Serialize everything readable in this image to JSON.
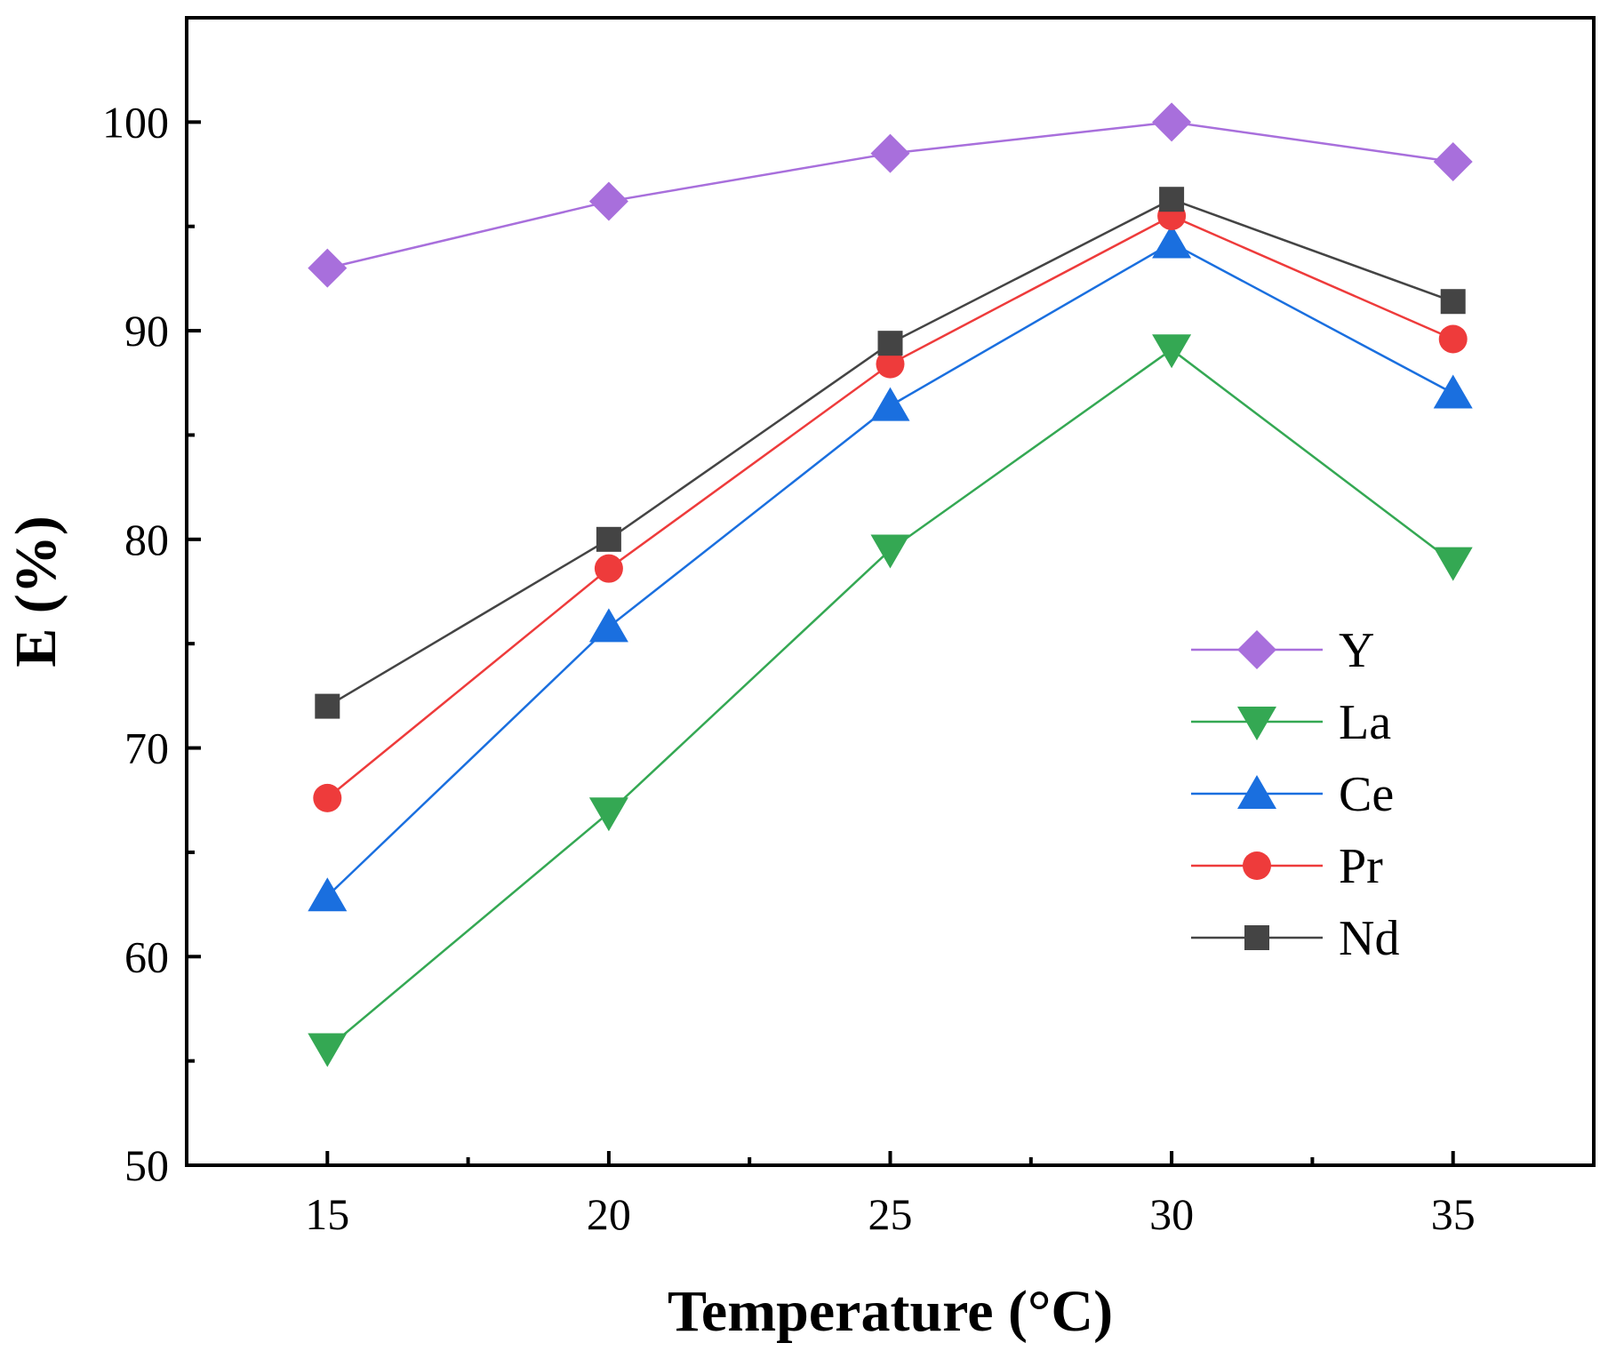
{
  "chart_data": {
    "type": "line",
    "title": "",
    "xlabel": "Temperature (°C)",
    "ylabel": "E (%)",
    "xlim": [
      12.5,
      37.5
    ],
    "ylim": [
      50,
      105
    ],
    "x": [
      15,
      20,
      25,
      30,
      35
    ],
    "x_ticks": [
      "15",
      "20",
      "25",
      "30",
      "35"
    ],
    "y_ticks": [
      "50",
      "60",
      "70",
      "80",
      "90",
      "100"
    ],
    "grid": false,
    "legend_position": "center-right",
    "series": [
      {
        "name": "Y",
        "values": [
          93.0,
          96.2,
          98.5,
          100.0,
          98.1
        ],
        "color": "#a86fdc",
        "marker": "diamond"
      },
      {
        "name": "La",
        "values": [
          55.6,
          66.9,
          79.5,
          89.1,
          78.9
        ],
        "color": "#34a853",
        "marker": "triangle-down"
      },
      {
        "name": "Ce",
        "values": [
          62.9,
          75.8,
          86.4,
          94.2,
          87.0
        ],
        "color": "#1a6fdf",
        "marker": "triangle-up"
      },
      {
        "name": "Pr",
        "values": [
          67.6,
          78.6,
          88.4,
          95.5,
          89.6
        ],
        "color": "#ee3b3b",
        "marker": "circle"
      },
      {
        "name": "Nd",
        "values": [
          72.0,
          80.0,
          89.4,
          96.3,
          91.4
        ],
        "color": "#444444",
        "marker": "square"
      }
    ]
  }
}
